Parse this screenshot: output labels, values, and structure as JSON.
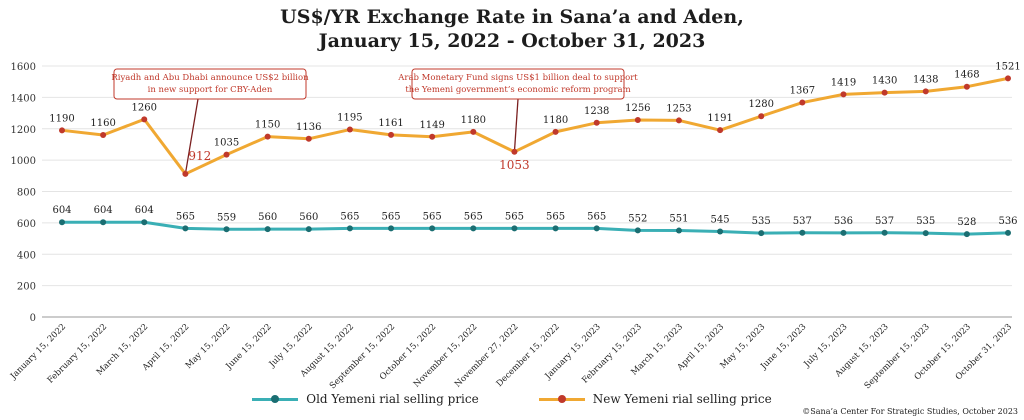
{
  "title_line1": "US$/YR Exchange Rate in Sana’a and Aden,",
  "title_line2": "January 15, 2022 - October 31, 2023",
  "credit": "©Sana’a Center For Strategic Studies, October 2023",
  "colors": {
    "old": "#3aafb5",
    "old_marker": "#1b6e72",
    "new": "#f0a832",
    "new_marker": "#c0392b",
    "annotation": "#c0392b",
    "grid": "#e4e4e4"
  },
  "chart_data": {
    "type": "line",
    "title": "US$/YR Exchange Rate in Sana’a and Aden, January 15, 2022 - October 31, 2023",
    "xlabel": "",
    "ylabel": "",
    "ylim": [
      0,
      1600
    ],
    "yticks": [
      0,
      200,
      400,
      600,
      800,
      1000,
      1200,
      1400,
      1600
    ],
    "grid": true,
    "legend_position": "bottom",
    "categories": [
      "January 15, 2022",
      "February 15, 2022",
      "March 15, 2022",
      "April 15, 2022",
      "May 15, 2022",
      "June 15, 2022",
      "July 15, 2022",
      "August 15, 2022",
      "September 15, 2022",
      "October 15, 2022",
      "November 15, 2022",
      "November 27, 2022",
      "December 15, 2022",
      "January 15, 2023",
      "February 15, 2023",
      "March 15, 2023",
      "April 15, 2023",
      "May 15, 2023",
      "June 15, 2023",
      "July 15, 2023",
      "August 15, 2023",
      "September 15, 2023",
      "October 15, 2023",
      "October 31, 2023"
    ],
    "series": [
      {
        "name": "Old Yemeni rial selling price",
        "values": [
          604,
          604,
          604,
          565,
          559,
          560,
          560,
          565,
          565,
          565,
          565,
          565,
          565,
          565,
          552,
          551,
          545,
          535,
          537,
          536,
          537,
          535,
          528,
          536
        ]
      },
      {
        "name": "New Yemeni rial selling price",
        "values": [
          1190,
          1160,
          1260,
          912,
          1035,
          1150,
          1136,
          1195,
          1161,
          1149,
          1180,
          1053,
          1180,
          1238,
          1256,
          1253,
          1191,
          1280,
          1367,
          1419,
          1430,
          1438,
          1468,
          1521
        ]
      }
    ],
    "annotations": [
      {
        "lines": [
          "Riyadh and Abu Dhabi announce US$2 billion",
          "in new support for CBY-Aden"
        ],
        "category_index": 3,
        "value": 912
      },
      {
        "lines": [
          "Arab Monetary Fund signs US$1 billion deal to support",
          "the Yemeni government’s economic reform program"
        ],
        "category_index": 11,
        "value": 1053
      }
    ]
  }
}
